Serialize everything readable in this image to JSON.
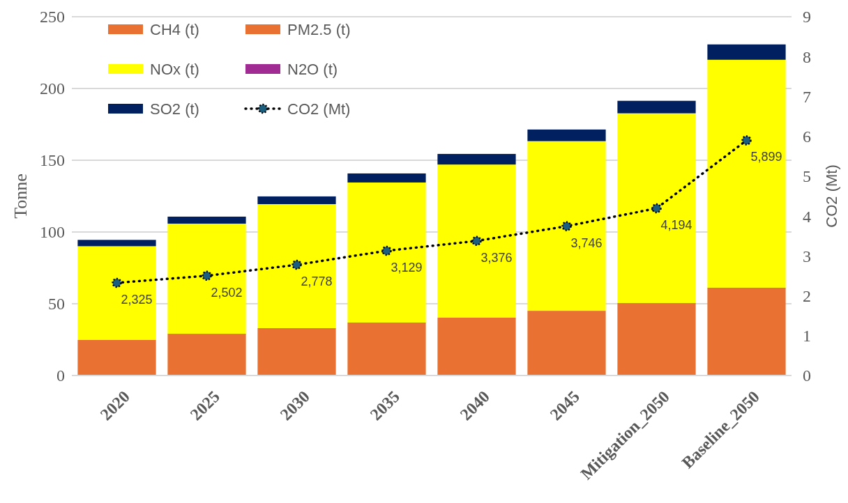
{
  "chart_data": {
    "type": "bar",
    "stacked": true,
    "ylabel": "Tonne",
    "y2label": "CO2 (Mt)",
    "categories": [
      "2020",
      "2025",
      "2030",
      "2035",
      "2040",
      "2045",
      "Mitigation_2050",
      "Baseline_2050"
    ],
    "series": [
      {
        "name": "CH4 (t)",
        "color": "#e97132",
        "values": [
          0.5,
          0.5,
          0.5,
          0.5,
          0.5,
          0.5,
          0.5,
          0.5
        ]
      },
      {
        "name": "PM2.5 (t)",
        "color": "#e97132",
        "values": [
          24.3,
          28.6,
          32.5,
          36.4,
          39.8,
          44.6,
          50,
          60.7
        ]
      },
      {
        "name": "NOx (t)",
        "color": "#ffff00",
        "values": [
          65.3,
          76.7,
          86.4,
          97.6,
          106.7,
          118.2,
          132.2,
          158.8
        ]
      },
      {
        "name": "N2O (t)",
        "color": "#a02b93",
        "values": [
          null,
          null,
          null,
          null,
          null,
          null,
          null,
          null
        ]
      },
      {
        "name": "SO2 (t)",
        "color": "#002060",
        "values": [
          4.4,
          4.9,
          5.4,
          6.3,
          7.4,
          8.1,
          8.7,
          10.7
        ]
      },
      {
        "name": "CO2 (Mt)",
        "type": "line",
        "axis": "y2",
        "color": "#000000",
        "marker": "circle",
        "line_style": "dotted",
        "values": [
          2.325,
          2.502,
          2.778,
          3.129,
          3.376,
          3.746,
          4.194,
          5.899
        ]
      }
    ],
    "annotations": [
      "2,325",
      "2,502",
      "2,778",
      "3,129",
      "3,376",
      "3,746",
      "4,194",
      "5,899"
    ],
    "ylim": [
      0,
      250
    ],
    "yticks": [
      0,
      50,
      100,
      150,
      200,
      250
    ],
    "y2lim": [
      0,
      9
    ],
    "y2ticks": [
      0,
      1,
      2,
      3,
      4,
      5,
      6,
      7,
      8,
      9
    ],
    "grid": "y",
    "legend": "top left"
  }
}
